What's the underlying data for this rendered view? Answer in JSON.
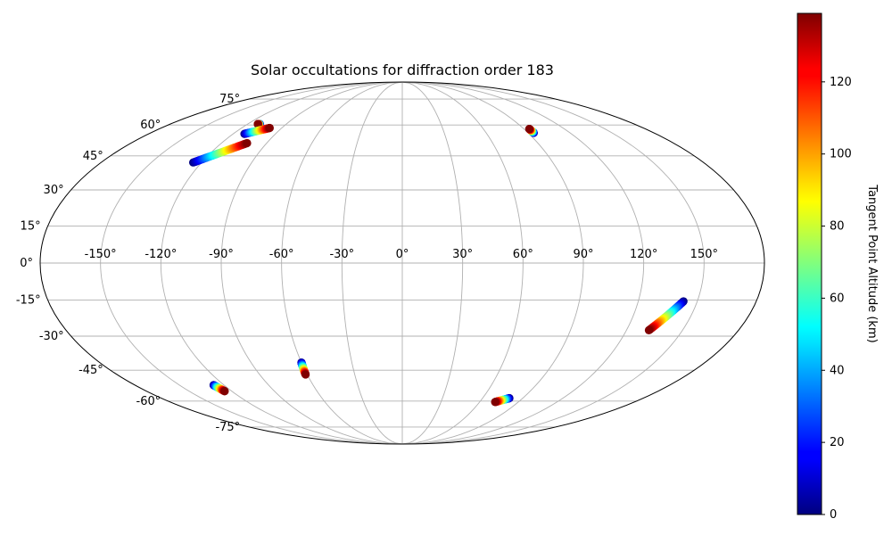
{
  "chart_data": {
    "type": "scatter",
    "projection": "mollweide",
    "title": "Solar occultations for diffraction order 183",
    "grid": true,
    "x_tick_labels": [
      "-150°",
      "-120°",
      "-90°",
      "-60°",
      "-30°",
      "0°",
      "30°",
      "60°",
      "90°",
      "120°",
      "150°"
    ],
    "x_ticks": [
      -150,
      -120,
      -90,
      -60,
      -30,
      0,
      30,
      60,
      90,
      120,
      150
    ],
    "y_tick_labels": [
      "-75°",
      "-60°",
      "-45°",
      "-30°",
      "-15°",
      "0°",
      "15°",
      "30°",
      "45°",
      "60°",
      "75°"
    ],
    "y_ticks": [
      -75,
      -60,
      -45,
      -30,
      -15,
      0,
      15,
      30,
      45,
      60,
      75
    ],
    "xlim": [
      -180,
      180
    ],
    "ylim": [
      -90,
      90
    ],
    "colorbar": {
      "label": "Tangent Point Altitude (km)",
      "colormap": "jet",
      "range": [
        0,
        139
      ],
      "ticks": [
        0,
        20,
        40,
        60,
        80,
        100,
        120
      ],
      "tick_labels": [
        "0",
        "20",
        "40",
        "60",
        "80",
        "100",
        "120"
      ]
    },
    "series": [
      {
        "start": [
          -110.5,
          60.5
        ],
        "end": [
          -112.0,
          60.5
        ],
        "alt_range": [
          0,
          139
        ]
      },
      {
        "start": [
          -112.0,
          55.5
        ],
        "end": [
          -99.0,
          58.5
        ],
        "alt_range": [
          0,
          139
        ]
      },
      {
        "start": [
          -125.0,
          42.0
        ],
        "end": [
          -103.0,
          51.0
        ],
        "alt_range": [
          0,
          139
        ]
      },
      {
        "start": [
          94.0,
          56.0
        ],
        "end": [
          94.0,
          58.0
        ],
        "alt_range": [
          0,
          139
        ]
      },
      {
        "start": [
          143.0,
          -15.5
        ],
        "end": [
          132.0,
          -27.5
        ],
        "alt_range": [
          0,
          139
        ]
      },
      {
        "start": [
          -60.0,
          -41.5
        ],
        "end": [
          -61.0,
          -47.0
        ],
        "alt_range": [
          0,
          139
        ]
      },
      {
        "start": [
          -127.0,
          -52.0
        ],
        "end": [
          -125.0,
          -55.0
        ],
        "alt_range": [
          0,
          139
        ]
      },
      {
        "start": [
          80.0,
          -58.5
        ],
        "end": [
          72.0,
          -60.5
        ],
        "alt_range": [
          0,
          139
        ]
      }
    ]
  }
}
